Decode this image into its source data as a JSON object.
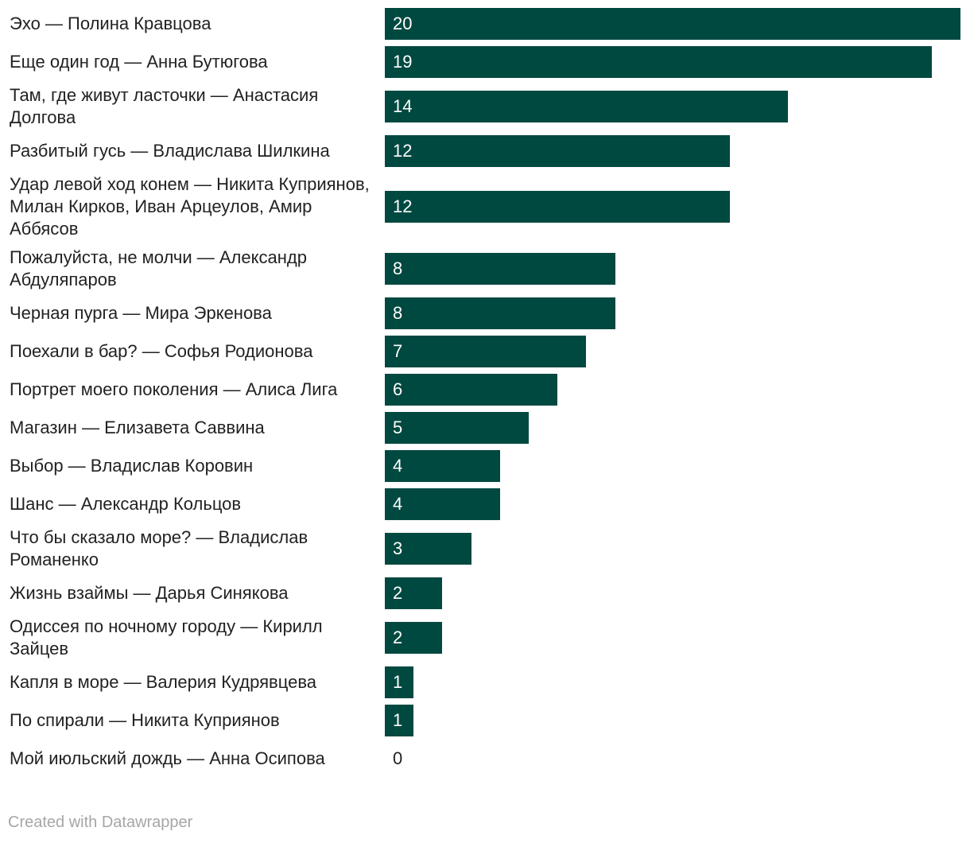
{
  "chart_data": {
    "type": "bar",
    "orientation": "horizontal",
    "categories": [
      "Эхо — Полина Кравцова",
      "Еще один год — Анна Бутюгова",
      "Там, где живут ласточки — Анастасия Долгова",
      "Разбитый гусь — Владислава Шилкина",
      "Удар левой ход конем — Никита Куприянов, Милан Кирков, Иван Арцеулов, Амир Аббясов",
      "Пожалуйста, не молчи — Александр Абдуляпаров",
      "Черная пурга — Мира Эркенова",
      "Поехали в бар? — Софья Родионова",
      "Портрет моего поколения — Алиса Лига",
      "Магазин — Елизавета Саввина",
      "Выбор — Владислав Коровин",
      "Шанс — Александр Кольцов",
      "Что бы сказало море? — Владислав Романенко",
      "Жизнь взаймы — Дарья Синякова",
      "Одиссея по ночному городу — Кирилл Зайцев",
      "Капля в море — Валерия Кудрявцева",
      "По спирали — Никита Куприянов",
      "Мой июльский дождь — Анна Осипова"
    ],
    "values": [
      20,
      19,
      14,
      12,
      12,
      8,
      8,
      7,
      6,
      5,
      4,
      4,
      3,
      2,
      2,
      1,
      1,
      0
    ],
    "xlim": [
      0,
      20
    ],
    "title": "",
    "xlabel": "",
    "ylabel": "",
    "grid": false,
    "bar_color": "#004940",
    "value_label_color_inside": "#ffffff",
    "value_label_color_outside": "#222222"
  },
  "footer": {
    "credit": "Created with Datawrapper"
  }
}
